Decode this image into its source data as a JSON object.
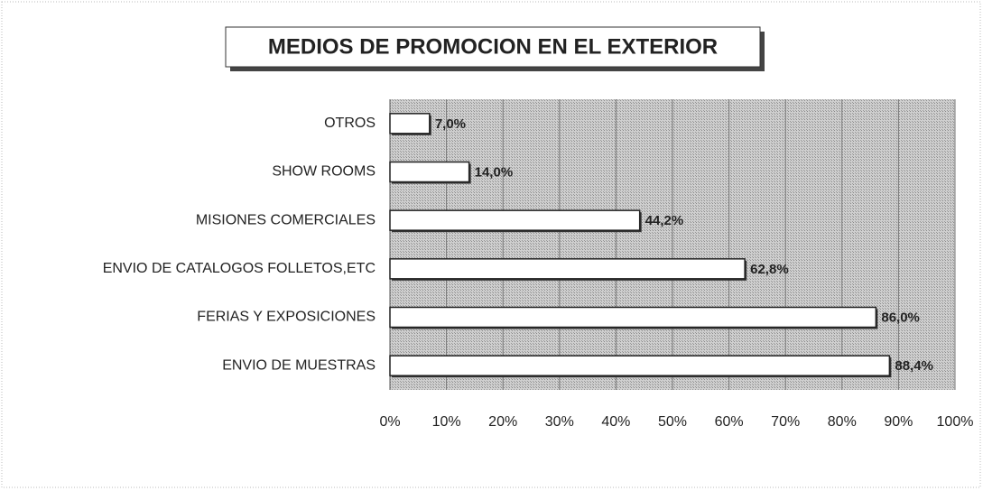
{
  "chart_data": {
    "type": "bar",
    "orientation": "horizontal",
    "title": "MEDIOS DE PROMOCION EN EL EXTERIOR",
    "categories": [
      "OTROS",
      "SHOW ROOMS",
      "MISIONES COMERCIALES",
      "ENVIO DE CATALOGOS FOLLETOS,ETC",
      "FERIAS Y EXPOSICIONES",
      "ENVIO DE MUESTRAS"
    ],
    "values": [
      7.0,
      14.0,
      44.2,
      62.8,
      86.0,
      88.4
    ],
    "value_labels": [
      "7,0%",
      "14,0%",
      "44,2%",
      "62,8%",
      "86,0%",
      "88,4%"
    ],
    "color": "#ffffff",
    "xlim": [
      0,
      100
    ],
    "xticks": [
      {
        "value": 0,
        "label": "0%"
      },
      {
        "value": 10,
        "label": "10%"
      },
      {
        "value": 20,
        "label": "20%"
      },
      {
        "value": 30,
        "label": "30%"
      },
      {
        "value": 40,
        "label": "40%"
      },
      {
        "value": 50,
        "label": "50%"
      },
      {
        "value": 60,
        "label": "60%"
      },
      {
        "value": 70,
        "label": "70%"
      },
      {
        "value": 80,
        "label": "80%"
      },
      {
        "value": 90,
        "label": "90%"
      },
      {
        "value": 100,
        "label": "100%"
      }
    ],
    "grid": true
  }
}
